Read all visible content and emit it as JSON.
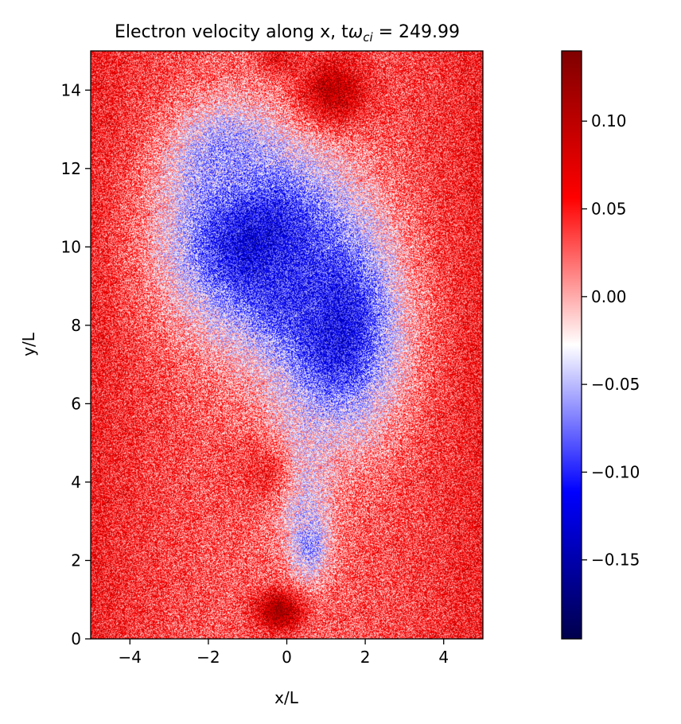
{
  "chart_data": {
    "type": "heatmap",
    "title": "Electron velocity along x, t",
    "title_symbol": "ω",
    "title_subscript": "ci",
    "title_value": " = 249.99",
    "xlabel": "x/L",
    "ylabel": "y/L",
    "xlim": [
      -5,
      5
    ],
    "ylim": [
      0,
      15
    ],
    "x_ticks": [
      -4,
      -2,
      0,
      2,
      4
    ],
    "x_tick_labels": [
      "−4",
      "−2",
      "0",
      "2",
      "4"
    ],
    "y_ticks": [
      0,
      2,
      4,
      6,
      8,
      10,
      12,
      14
    ],
    "y_tick_labels": [
      "0",
      "2",
      "4",
      "6",
      "8",
      "10",
      "12",
      "14"
    ],
    "grid": false,
    "colormap": "seismic",
    "colormap_colors": [
      "#00004c",
      "#0000ff",
      "#ffffff",
      "#ff0000",
      "#7f0000"
    ],
    "colorbar": {
      "range": [
        -0.195,
        0.14
      ],
      "ticks": [
        0.1,
        0.05,
        0.0,
        -0.05,
        -0.1,
        -0.15
      ],
      "tick_labels": [
        "0.10",
        "0.05",
        "0.00",
        "−0.05",
        "−0.10",
        "−0.15"
      ]
    },
    "field_approximation": {
      "background": 0.05,
      "features": [
        {
          "x": -0.8,
          "y": 10.2,
          "rx": 2.2,
          "ry": 2.4,
          "value": -0.13
        },
        {
          "x": 1.3,
          "y": 7.9,
          "rx": 1.6,
          "ry": 2.6,
          "value": -0.12
        },
        {
          "x": 0.1,
          "y": 8.8,
          "rx": 0.9,
          "ry": 1.0,
          "value": -0.1
        },
        {
          "x": -1.6,
          "y": 12.3,
          "rx": 1.2,
          "ry": 1.2,
          "value": -0.06
        },
        {
          "x": 0.3,
          "y": 4.0,
          "rx": 0.7,
          "ry": 1.4,
          "value": -0.05
        },
        {
          "x": 0.6,
          "y": 2.4,
          "rx": 0.5,
          "ry": 0.9,
          "value": -0.06
        },
        {
          "x": 1.2,
          "y": 14.0,
          "rx": 0.9,
          "ry": 0.9,
          "value": 0.1
        },
        {
          "x": -0.2,
          "y": 0.7,
          "rx": 0.6,
          "ry": 0.5,
          "value": 0.12
        },
        {
          "x": -0.6,
          "y": 4.2,
          "rx": 0.9,
          "ry": 0.9,
          "value": 0.05
        },
        {
          "x": -0.2,
          "y": 14.8,
          "rx": 0.5,
          "ry": 0.4,
          "value": 0.07
        }
      ]
    }
  }
}
